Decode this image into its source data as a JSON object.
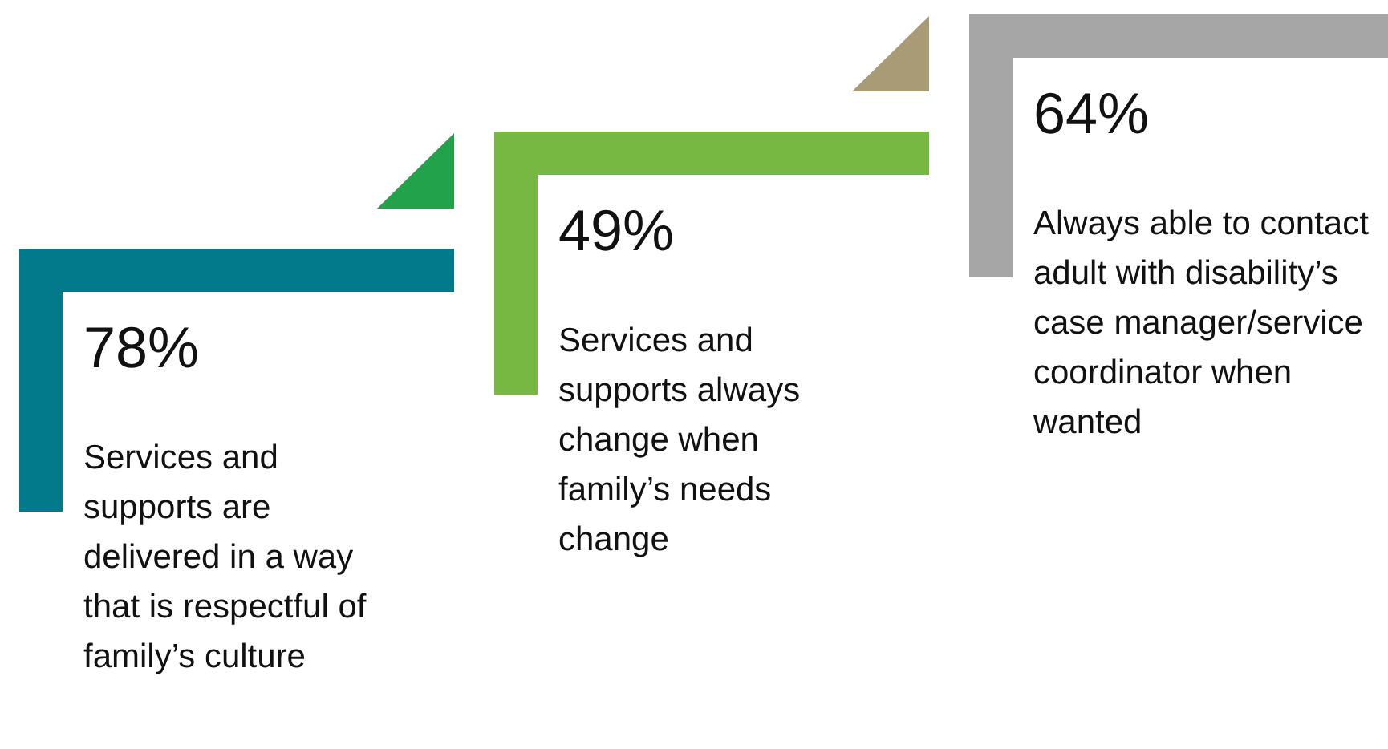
{
  "chart_data": {
    "type": "other",
    "categories": [
      "Services and supports are delivered in a way that is respectful of family’s culture",
      "Services and supports always change when family’s needs change",
      "Always able to contact adult with disability’s case manager/service coordinator when wanted"
    ],
    "values": [
      78,
      49,
      64
    ],
    "value_labels": [
      "78%",
      "49%",
      "64%"
    ],
    "colors": [
      "#037a8b",
      "#77b843",
      "#a6a6a6"
    ]
  }
}
